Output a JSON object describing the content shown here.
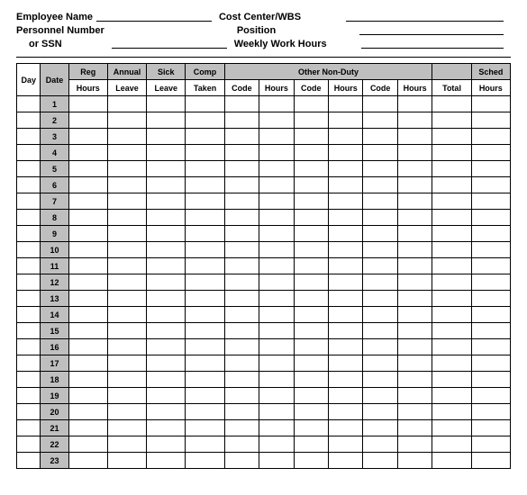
{
  "form": {
    "employee_name_label": "Employee Name",
    "cost_center_label": "Cost Center/WBS",
    "personnel_number_label": "Personnel Number",
    "or_ssn_label": "or SSN",
    "position_label": "Position",
    "weekly_hours_label": "Weekly Work Hours"
  },
  "headers": {
    "day": "Day",
    "date": "Date",
    "reg_hours_top": "Reg",
    "reg_hours_bot": "Hours",
    "annual_top": "Annual",
    "annual_bot": "Leave",
    "sick_top": "Sick",
    "sick_bot": "Leave",
    "comp_top": "Comp",
    "comp_bot": "Taken",
    "other_nonduty": "Other Non-Duty",
    "code": "Code",
    "hours": "Hours",
    "total": "Total",
    "sched_top": "Sched",
    "sched_bot": "Hours"
  },
  "days": [
    "1",
    "2",
    "3",
    "4",
    "5",
    "6",
    "7",
    "8",
    "9",
    "10",
    "11",
    "12",
    "13",
    "14",
    "15",
    "16",
    "17",
    "18",
    "19",
    "20",
    "21",
    "22",
    "23"
  ],
  "styling": {
    "grey_color": "#bfbfbf",
    "border_color": "#000000",
    "font_size_header": 11,
    "font_size_table": 9
  }
}
